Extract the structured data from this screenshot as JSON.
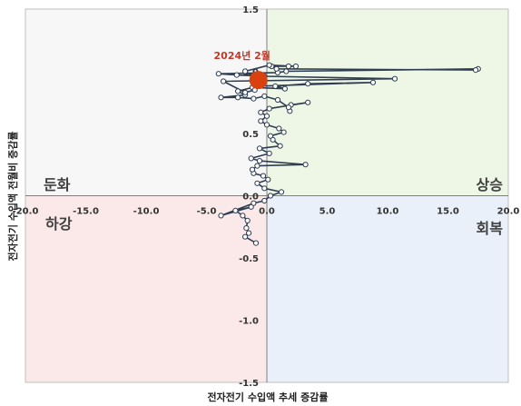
{
  "chart_data": {
    "type": "scatter",
    "title": "",
    "xlabel": "전자전기 수입액 추세 증감률",
    "ylabel": "전자전기 수입액 전월비 증감률",
    "xlim": [
      -20.0,
      20.0
    ],
    "ylim": [
      -1.5,
      1.5
    ],
    "x_ticks": [
      "-20.0",
      "-15.0",
      "-10.0",
      "-5.0",
      "0.0",
      "5.0",
      "10.0",
      "15.0",
      "20.0"
    ],
    "y_ticks": [
      "1.5",
      "1.0",
      "0.5",
      "0.0",
      "-0.5",
      "-1.0",
      "-1.5"
    ],
    "quadrant_labels": {
      "top_left": "둔화",
      "top_right": "상승",
      "bottom_left": "하강",
      "bottom_right": "회복"
    },
    "quadrant_colors": {
      "top_left": "#f7f7f7",
      "top_right": "#eef6e6",
      "bottom_left": "#fbe9e9",
      "bottom_right": "#e9f0fa"
    },
    "line_color": "#2e3d52",
    "highlight": {
      "label": "2024년 2월",
      "x": -0.7,
      "y": 0.93,
      "color": "#d9410f"
    },
    "series": [
      {
        "name": "",
        "points": [
          [
            -0.9,
            -0.38
          ],
          [
            -1.8,
            -0.33
          ],
          [
            -1.5,
            -0.3
          ],
          [
            -1.7,
            -0.26
          ],
          [
            -1.6,
            -0.2
          ],
          [
            -2.0,
            -0.16
          ],
          [
            -2.6,
            -0.12
          ],
          [
            -1.3,
            -0.09
          ],
          [
            -3.8,
            -0.16
          ],
          [
            -1.1,
            -0.06
          ],
          [
            -0.2,
            -0.04
          ],
          [
            0.3,
            0.0
          ],
          [
            1.2,
            0.03
          ],
          [
            -0.2,
            0.06
          ],
          [
            -0.8,
            0.1
          ],
          [
            0.1,
            0.13
          ],
          [
            -0.3,
            0.16
          ],
          [
            -1.1,
            0.18
          ],
          [
            -1.2,
            0.21
          ],
          [
            -0.8,
            0.24
          ],
          [
            3.2,
            0.25
          ],
          [
            -0.6,
            0.28
          ],
          [
            -1.3,
            0.3
          ],
          [
            0.2,
            0.34
          ],
          [
            -0.6,
            0.38
          ],
          [
            1.1,
            0.4
          ],
          [
            0.5,
            0.45
          ],
          [
            0.3,
            0.48
          ],
          [
            1.4,
            0.51
          ],
          [
            1.0,
            0.54
          ],
          [
            0.0,
            0.57
          ],
          [
            -0.5,
            0.6
          ],
          [
            0.0,
            0.64
          ],
          [
            -0.5,
            0.67
          ],
          [
            0.2,
            0.7
          ],
          [
            3.4,
            0.75
          ],
          [
            2.0,
            0.73
          ],
          [
            1.9,
            0.68
          ],
          [
            1.8,
            0.71
          ],
          [
            0.9,
            0.77
          ],
          [
            -0.2,
            0.8
          ],
          [
            -1.1,
            0.78
          ],
          [
            -2.4,
            0.79
          ],
          [
            -3.8,
            0.79
          ],
          [
            -1.8,
            0.81
          ],
          [
            -2.4,
            0.84
          ],
          [
            -1.2,
            0.87
          ],
          [
            1.5,
            0.86
          ],
          [
            0.7,
            0.88
          ],
          [
            3.4,
            0.9
          ],
          [
            8.8,
            0.91
          ],
          [
            -0.8,
            0.88
          ],
          [
            -1.0,
            0.85
          ],
          [
            -1.8,
            0.83
          ],
          [
            -3.6,
            0.92
          ],
          [
            10.6,
            0.94
          ],
          [
            -0.2,
            0.96
          ],
          [
            -2.5,
            0.97
          ],
          [
            -4.0,
            0.98
          ],
          [
            0.9,
            0.99
          ],
          [
            1.6,
            1.0
          ],
          [
            17.5,
            1.02
          ],
          [
            17.3,
            1.01
          ],
          [
            0.8,
            1.02
          ],
          [
            0.4,
            1.04
          ],
          [
            1.8,
            1.04
          ],
          [
            2.4,
            1.04
          ],
          [
            0.2,
            1.05
          ],
          [
            -1.8,
            1.0
          ],
          [
            -0.7,
            0.93
          ]
        ]
      }
    ]
  }
}
